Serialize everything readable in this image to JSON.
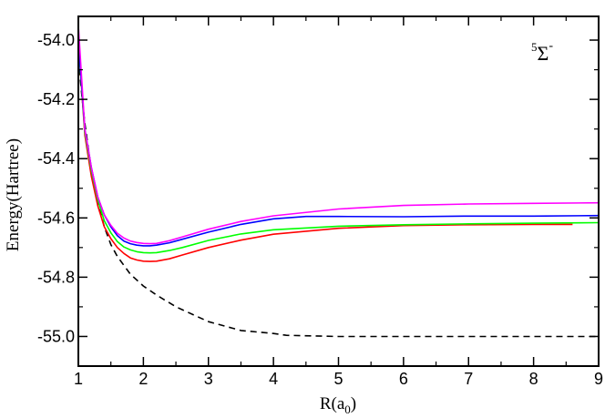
{
  "chart_data": {
    "type": "line",
    "title": "",
    "xlabel": "R(a_0)",
    "xlabel_main": "R(a",
    "xlabel_sub": "0",
    "xlabel_close": ")",
    "ylabel": "Energy(Hartree)",
    "xlim": [
      1,
      9
    ],
    "ylim": [
      -55.1,
      -53.92
    ],
    "x_ticks": [
      1,
      2,
      3,
      4,
      5,
      6,
      7,
      8,
      9
    ],
    "x_tick_labels": [
      "1",
      "2",
      "3",
      "4",
      "5",
      "6",
      "7",
      "8",
      "9"
    ],
    "y_ticks": [
      -54.0,
      -54.2,
      -54.4,
      -54.6,
      -54.8,
      -55.0
    ],
    "y_tick_labels": [
      "-54.0",
      "-54.2",
      "-54.4",
      "-54.6",
      "-54.8",
      "-55.0"
    ],
    "annotation": {
      "superscript": "5",
      "symbol": "Σ",
      "sign": "-"
    },
    "series": [
      {
        "name": "dashed",
        "color": "#000000",
        "dash": "dashed",
        "x": [
          1.0,
          1.05,
          1.1,
          1.2,
          1.3,
          1.4,
          1.5,
          1.6,
          1.7,
          1.8,
          2.0,
          2.2,
          2.5,
          3.0,
          3.5,
          4.0,
          4.2,
          5.0,
          6.0,
          7.0,
          8.0,
          9.0
        ],
        "values": [
          -54.06,
          -54.18,
          -54.28,
          -54.44,
          -54.55,
          -54.63,
          -54.69,
          -54.73,
          -54.76,
          -54.79,
          -54.83,
          -54.86,
          -54.9,
          -54.95,
          -54.98,
          -54.99,
          -54.996,
          -55.0,
          -55.0,
          -55.0,
          -55.0,
          -55.0
        ]
      },
      {
        "name": "red",
        "color": "#ff0000",
        "dash": "solid",
        "x": [
          1.0,
          1.1,
          1.2,
          1.3,
          1.4,
          1.5,
          1.6,
          1.7,
          1.8,
          1.9,
          2.0,
          2.1,
          2.2,
          2.4,
          2.6,
          3.0,
          3.5,
          4.0,
          5.0,
          6.0,
          7.0,
          8.0,
          8.6
        ],
        "values": [
          -54.0,
          -54.32,
          -54.46,
          -54.56,
          -54.63,
          -54.67,
          -54.7,
          -54.72,
          -54.735,
          -54.742,
          -54.746,
          -54.747,
          -54.746,
          -54.738,
          -54.725,
          -54.7,
          -54.675,
          -54.655,
          -54.635,
          -54.626,
          -54.623,
          -54.622,
          -54.622
        ]
      },
      {
        "name": "green",
        "color": "#00ff00",
        "dash": "solid",
        "x": [
          1.0,
          1.1,
          1.2,
          1.3,
          1.4,
          1.5,
          1.6,
          1.7,
          1.8,
          1.9,
          2.0,
          2.1,
          2.2,
          2.4,
          2.6,
          3.0,
          3.5,
          4.0,
          5.0,
          6.0,
          7.0,
          8.0,
          9.0
        ],
        "values": [
          -54.0,
          -54.31,
          -54.44,
          -54.54,
          -54.61,
          -54.65,
          -54.68,
          -54.698,
          -54.708,
          -54.714,
          -54.717,
          -54.718,
          -54.717,
          -54.71,
          -54.7,
          -54.676,
          -54.654,
          -54.64,
          -54.628,
          -54.623,
          -54.62,
          -54.618,
          -54.616
        ]
      },
      {
        "name": "blue",
        "color": "#0000ff",
        "dash": "solid",
        "x": [
          1.0,
          1.1,
          1.2,
          1.3,
          1.4,
          1.5,
          1.6,
          1.7,
          1.8,
          1.9,
          2.0,
          2.1,
          2.2,
          2.4,
          2.6,
          3.0,
          3.5,
          4.0,
          4.5,
          5.0,
          6.0,
          7.0,
          8.0,
          9.0
        ],
        "values": [
          -54.0,
          -54.3,
          -54.43,
          -54.53,
          -54.59,
          -54.63,
          -54.66,
          -54.678,
          -54.687,
          -54.692,
          -54.694,
          -54.694,
          -54.692,
          -54.684,
          -54.672,
          -54.648,
          -54.622,
          -54.603,
          -54.595,
          -54.595,
          -54.596,
          -54.594,
          -54.594,
          -54.592
        ]
      },
      {
        "name": "magenta",
        "color": "#ff00ff",
        "dash": "solid",
        "x": [
          1.0,
          1.1,
          1.2,
          1.3,
          1.4,
          1.5,
          1.6,
          1.7,
          1.8,
          1.9,
          2.0,
          2.1,
          2.2,
          2.4,
          2.6,
          3.0,
          3.5,
          4.0,
          5.0,
          6.0,
          7.0,
          8.0,
          9.0
        ],
        "values": [
          -53.95,
          -54.3,
          -54.43,
          -54.53,
          -54.59,
          -54.625,
          -54.652,
          -54.668,
          -54.678,
          -54.683,
          -54.686,
          -54.687,
          -54.686,
          -54.677,
          -54.664,
          -54.638,
          -54.612,
          -54.593,
          -54.57,
          -54.558,
          -54.553,
          -54.551,
          -54.549
        ]
      }
    ]
  }
}
